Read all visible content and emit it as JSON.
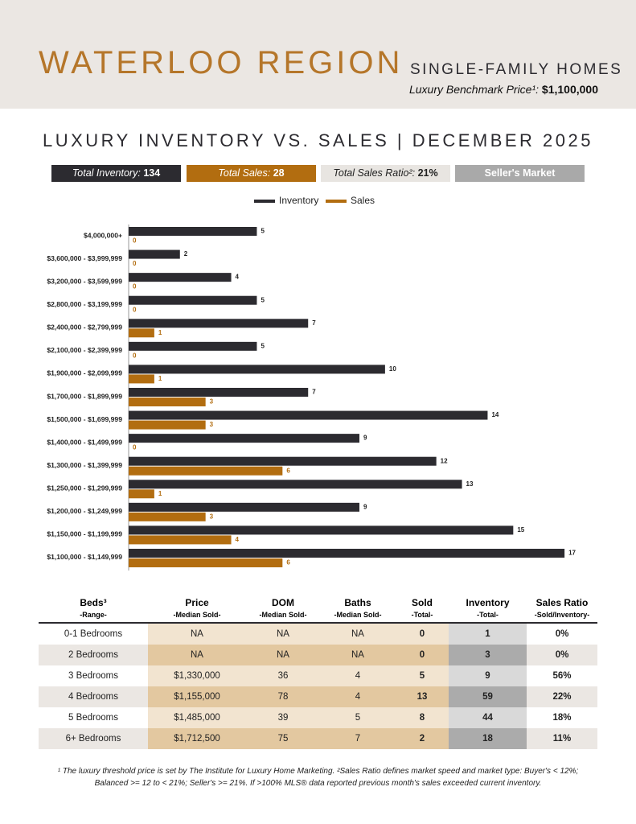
{
  "header": {
    "title": "WATERLOO REGION",
    "subtitle": "SINGLE-FAMILY HOMES",
    "benchmark_label": "Luxury Benchmark Price¹:",
    "benchmark_value": "$1,100,000"
  },
  "chart_data": {
    "type": "hbar",
    "title": "LUXURY INVENTORY VS. SALES | DECEMBER 2025",
    "stats": [
      {
        "label": "Total Inventory:",
        "value": 134
      },
      {
        "label": "Total Sales:",
        "value": 28
      },
      {
        "label": "Total Sales Ratio²:",
        "value": "21%"
      },
      {
        "label": "Seller's Market"
      }
    ],
    "categories": [
      "$4,000,000+",
      "$3,600,000 - $3,999,999",
      "$3,200,000 - $3,599,999",
      "$2,800,000 - $3,199,999",
      "$2,400,000 - $2,799,999",
      "$2,100,000 - $2,399,999",
      "$1,900,000 - $2,099,999",
      "$1,700,000 - $1,899,999",
      "$1,500,000 - $1,699,999",
      "$1,400,000 - $1,499,999",
      "$1,300,000 - $1,399,999",
      "$1,250,000 - $1,299,999",
      "$1,200,000 - $1,249,999",
      "$1,150,000 - $1,199,999",
      "$1,100,000 - $1,149,999"
    ],
    "series": [
      {
        "name": "Inventory",
        "color": "#2c2b30",
        "values": [
          5,
          2,
          4,
          5,
          7,
          5,
          10,
          7,
          14,
          9,
          12,
          13,
          9,
          15,
          17
        ]
      },
      {
        "name": "Sales",
        "color": "#b26d10",
        "values": [
          0,
          0,
          0,
          0,
          1,
          0,
          1,
          3,
          3,
          0,
          6,
          1,
          3,
          4,
          6
        ]
      }
    ],
    "xlim": [
      0,
      18
    ]
  },
  "table": {
    "columns": [
      {
        "name": "Beds³",
        "sub": "-Range-"
      },
      {
        "name": "Price",
        "sub": "-Median Sold-"
      },
      {
        "name": "DOM",
        "sub": "-Median Sold-"
      },
      {
        "name": "Baths",
        "sub": "-Median Sold-"
      },
      {
        "name": "Sold",
        "sub": "-Total-"
      },
      {
        "name": "Inventory",
        "sub": "-Total-"
      },
      {
        "name": "Sales Ratio",
        "sub": "-Sold/Inventory-"
      }
    ],
    "rows": [
      [
        "0-1 Bedrooms",
        "NA",
        "NA",
        "NA",
        0,
        1,
        "0%"
      ],
      [
        "2 Bedrooms",
        "NA",
        "NA",
        "NA",
        0,
        3,
        "0%"
      ],
      [
        "3 Bedrooms",
        "$1,330,000",
        36,
        4,
        5,
        9,
        "56%"
      ],
      [
        "4 Bedrooms",
        "$1,155,000",
        78,
        4,
        13,
        59,
        "22%"
      ],
      [
        "5 Bedrooms",
        "$1,485,000",
        39,
        5,
        8,
        44,
        "18%"
      ],
      [
        "6+ Bedrooms",
        "$1,712,500",
        75,
        7,
        2,
        18,
        "11%"
      ]
    ]
  },
  "footnote": "¹ The luxury threshold price is set by The Institute for Luxury Home Marketing. ²Sales Ratio defines market speed and market type: Buyer's < 12%; Balanced >= 12 to < 21%; Seller's >= 21%. If >100% MLS® data reported previous month's sales exceeded current inventory."
}
